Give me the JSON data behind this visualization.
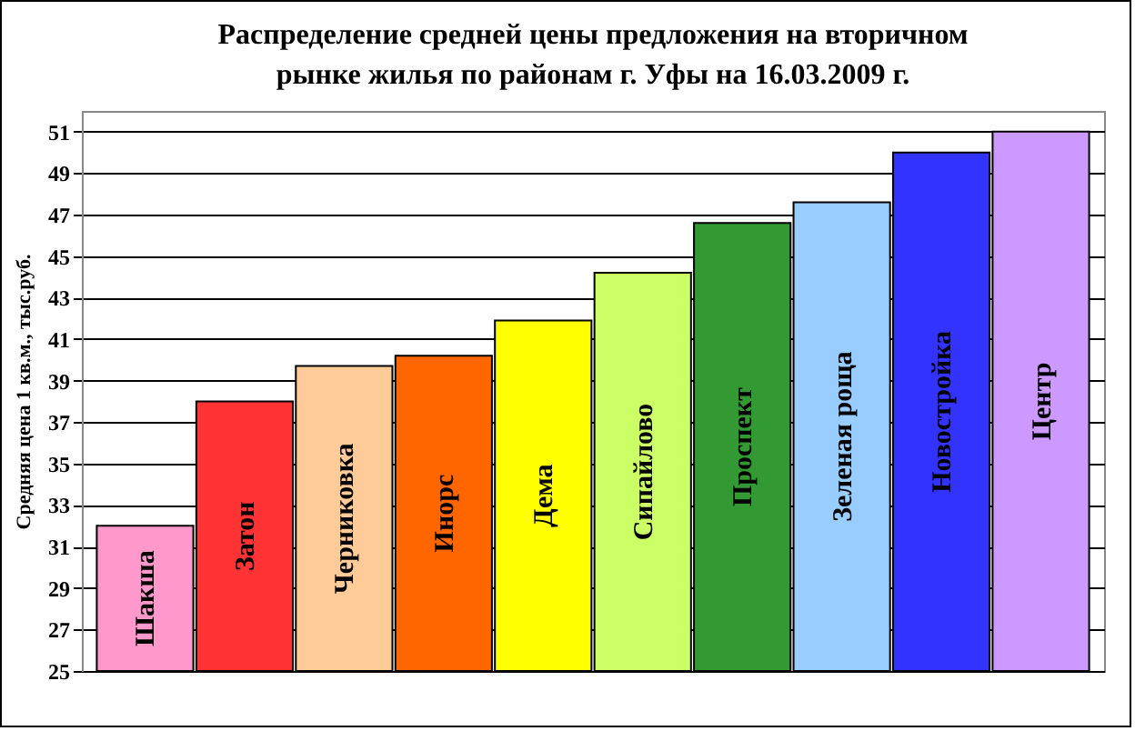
{
  "chart_data": {
    "type": "bar",
    "title": "Распределение средней цены предложения на вторичном рынке жилья по районам г. Уфы на 16.03.2009 г.",
    "ylabel": "Средняя цена 1 кв.м., тыс.руб.",
    "categories": [
      "Шакша",
      "Затон",
      "Черниковка",
      "Инорс",
      "Дема",
      "Сипайлово",
      "Проспект",
      "Зеленая роща",
      "Новостройка",
      "Центр"
    ],
    "values": [
      32.0,
      38.0,
      39.7,
      40.2,
      41.9,
      44.2,
      46.6,
      47.6,
      50.0,
      51.0
    ],
    "colors": [
      "#ff99cc",
      "#ff3333",
      "#ffcc99",
      "#ff6600",
      "#ffff00",
      "#ccff66",
      "#339933",
      "#99ccff",
      "#3333ff",
      "#cc99ff"
    ],
    "ylim": [
      25,
      52
    ],
    "yticks": [
      25,
      27,
      29,
      31,
      33,
      35,
      37,
      39,
      41,
      43,
      45,
      47,
      49,
      51
    ],
    "grid": "y"
  }
}
